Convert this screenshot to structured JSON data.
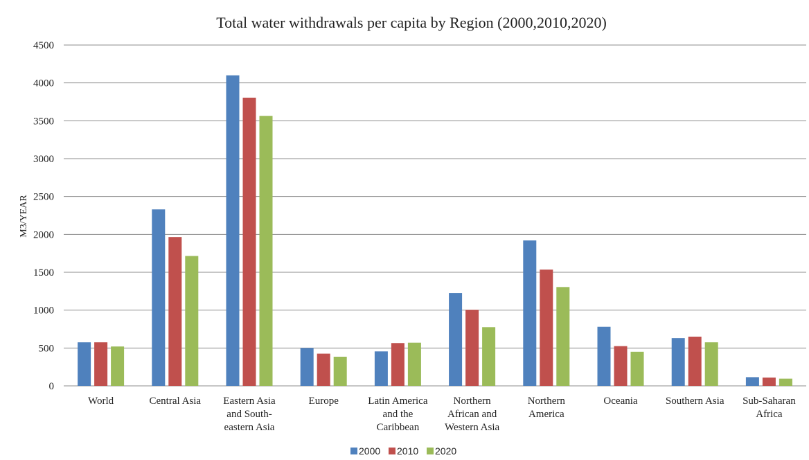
{
  "chart_data": {
    "type": "bar",
    "title": "Total water withdrawals per capita by Region (2000,2010,2020)",
    "xlabel": "",
    "ylabel": "M3/YEAR",
    "ylim": [
      0,
      4500
    ],
    "yticks": [
      0,
      500,
      1000,
      1500,
      2000,
      2500,
      3000,
      3500,
      4000,
      4500
    ],
    "grid": true,
    "legend_position": "bottom",
    "categories": [
      [
        "World"
      ],
      [
        "Central Asia"
      ],
      [
        "Eastern Asia",
        "and South-",
        "eastern Asia"
      ],
      [
        "Europe"
      ],
      [
        "Latin America",
        "and the",
        "Caribbean"
      ],
      [
        "Northern",
        "African and",
        "Western Asia"
      ],
      [
        "Northern",
        "America"
      ],
      [
        "Oceania"
      ],
      [
        "Southern Asia"
      ],
      [
        "Sub-Saharan",
        "Africa"
      ]
    ],
    "series": [
      {
        "name": "2000",
        "color": "#4F81BD",
        "values": [
          575,
          2330,
          4100,
          500,
          455,
          1225,
          1920,
          780,
          630,
          115
        ]
      },
      {
        "name": "2010",
        "color": "#C0504D",
        "values": [
          575,
          1965,
          3805,
          425,
          565,
          1005,
          1535,
          525,
          650,
          110
        ]
      },
      {
        "name": "2020",
        "color": "#9BBB59",
        "values": [
          520,
          1715,
          3565,
          385,
          570,
          775,
          1305,
          450,
          575,
          95
        ]
      }
    ]
  }
}
